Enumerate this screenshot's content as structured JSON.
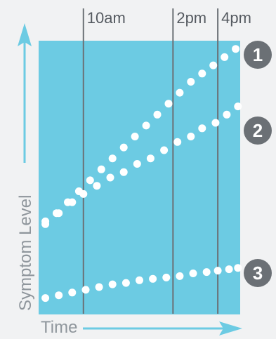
{
  "chart_data": {
    "type": "scatter",
    "xlabel": "Time",
    "ylabel": "Symptom Level",
    "times": [
      "10am",
      "2pm",
      "4pm"
    ],
    "xlim": [
      8,
      17
    ],
    "ylim": [
      0,
      100
    ],
    "series": [
      {
        "name": "1",
        "x": [
          8.3,
          8.8,
          9.3,
          9.8,
          10.3,
          10.8,
          11.3,
          11.8,
          12.3,
          12.8,
          13.3,
          13.8,
          14.3,
          14.8,
          15.3,
          15.8,
          16.3,
          16.8
        ],
        "y": [
          33,
          37,
          41,
          45,
          49,
          53,
          57,
          61,
          65,
          69,
          73,
          77,
          81,
          85,
          88,
          91,
          94,
          97
        ]
      },
      {
        "name": "2",
        "x": [
          8.3,
          8.9,
          9.5,
          10.0,
          10.6,
          11.2,
          11.8,
          12.4,
          13.0,
          13.6,
          14.2,
          14.8,
          15.3,
          15.9,
          16.4,
          16.9
        ],
        "y": [
          34,
          37,
          41,
          44,
          47,
          50,
          52,
          55,
          57,
          60,
          63,
          65,
          68,
          70,
          73,
          76
        ]
      },
      {
        "name": "3",
        "x": [
          8.3,
          8.9,
          9.5,
          10.1,
          10.7,
          11.3,
          11.9,
          12.5,
          13.1,
          13.7,
          14.3,
          14.9,
          15.5,
          16.0,
          16.5,
          16.9
        ],
        "y": [
          6,
          7,
          8,
          9,
          10,
          11,
          11.5,
          12.5,
          13,
          13.5,
          14,
          15,
          15.5,
          16,
          16.5,
          17
        ]
      }
    ],
    "colors": {
      "plot_background": "#6ccbe3",
      "dots": "#ffffff",
      "time_lines": "#6b7075",
      "arrows": "#6ccbe3",
      "badges": "#6b7075"
    }
  }
}
